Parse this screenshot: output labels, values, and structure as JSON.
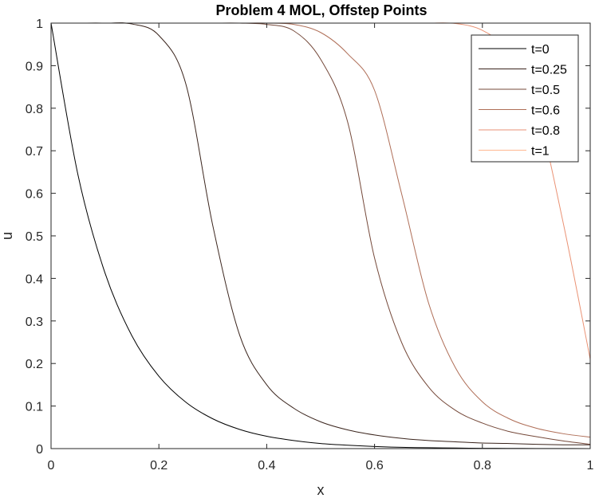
{
  "chart_data": {
    "type": "line",
    "title": "Problem 4 MOL, Offstep Points",
    "xlabel": "x",
    "ylabel": "u",
    "xlim": [
      0,
      1
    ],
    "ylim": [
      0,
      1
    ],
    "xticks": [
      0,
      0.2,
      0.4,
      0.6,
      0.8,
      1
    ],
    "xtick_labels": [
      "0",
      "0.2",
      "0.4",
      "0.6",
      "0.8",
      "1"
    ],
    "yticks": [
      0,
      0.1,
      0.2,
      0.3,
      0.4,
      0.5,
      0.6,
      0.7,
      0.8,
      0.9,
      1
    ],
    "ytick_labels": [
      "0",
      "0.1",
      "0.2",
      "0.3",
      "0.4",
      "0.5",
      "0.6",
      "0.7",
      "0.8",
      "0.9",
      "1"
    ],
    "grid": false,
    "legend_position": "top-right",
    "x": [
      0,
      0.05,
      0.1,
      0.15,
      0.2,
      0.25,
      0.3,
      0.35,
      0.4,
      0.45,
      0.5,
      0.55,
      0.6,
      0.65,
      0.7,
      0.75,
      0.8,
      0.85,
      0.9,
      0.95,
      1
    ],
    "series": [
      {
        "name": "t=0",
        "color": "#000000",
        "values": [
          1.0,
          0.643,
          0.413,
          0.265,
          0.17,
          0.109,
          0.07,
          0.045,
          0.029,
          0.019,
          0.012,
          0.008,
          0.005,
          0.003,
          0.002,
          0.0013,
          0.0008,
          0.0005,
          0.0003,
          0.0002,
          0.0001
        ]
      },
      {
        "name": "t=0.25",
        "color": "#3a241c",
        "values": [
          1.0,
          1.0,
          1.0,
          0.998,
          0.971,
          0.857,
          0.524,
          0.266,
          0.15,
          0.095,
          0.063,
          0.044,
          0.032,
          0.024,
          0.019,
          0.016,
          0.013,
          0.012,
          0.01,
          0.009,
          0.009
        ]
      },
      {
        "name": "t=0.5",
        "color": "#75493a",
        "values": [
          1.0,
          1.0,
          1.0,
          1.0,
          1.0,
          1.0,
          1.0,
          1.0,
          0.997,
          0.982,
          0.915,
          0.768,
          0.448,
          0.25,
          0.145,
          0.09,
          0.06,
          0.04,
          0.028,
          0.018,
          0.01
        ]
      },
      {
        "name": "t=0.6",
        "color": "#af6e57",
        "values": [
          1.0,
          1.0,
          1.0,
          1.0,
          1.0,
          1.0,
          1.0,
          1.0,
          1.0,
          0.997,
          0.978,
          0.928,
          0.842,
          0.6,
          0.343,
          0.19,
          0.11,
          0.07,
          0.048,
          0.035,
          0.027
        ]
      },
      {
        "name": "t=0.8",
        "color": "#ea9274",
        "values": [
          1.0,
          1.0,
          1.0,
          1.0,
          1.0,
          1.0,
          1.0,
          1.0,
          1.0,
          1.0,
          1.0,
          1.0,
          1.0,
          1.0,
          1.0,
          0.999,
          0.983,
          0.932,
          0.803,
          0.53,
          0.21
        ]
      },
      {
        "name": "t=1",
        "color": "#ffb790",
        "values": [
          1.0,
          1.0,
          1.0,
          1.0,
          1.0,
          1.0,
          1.0,
          1.0,
          1.0,
          1.0,
          1.0,
          1.0,
          1.0,
          1.0,
          1.0,
          1.0,
          1.0,
          1.0,
          1.0,
          1.0,
          1.0
        ]
      }
    ]
  }
}
